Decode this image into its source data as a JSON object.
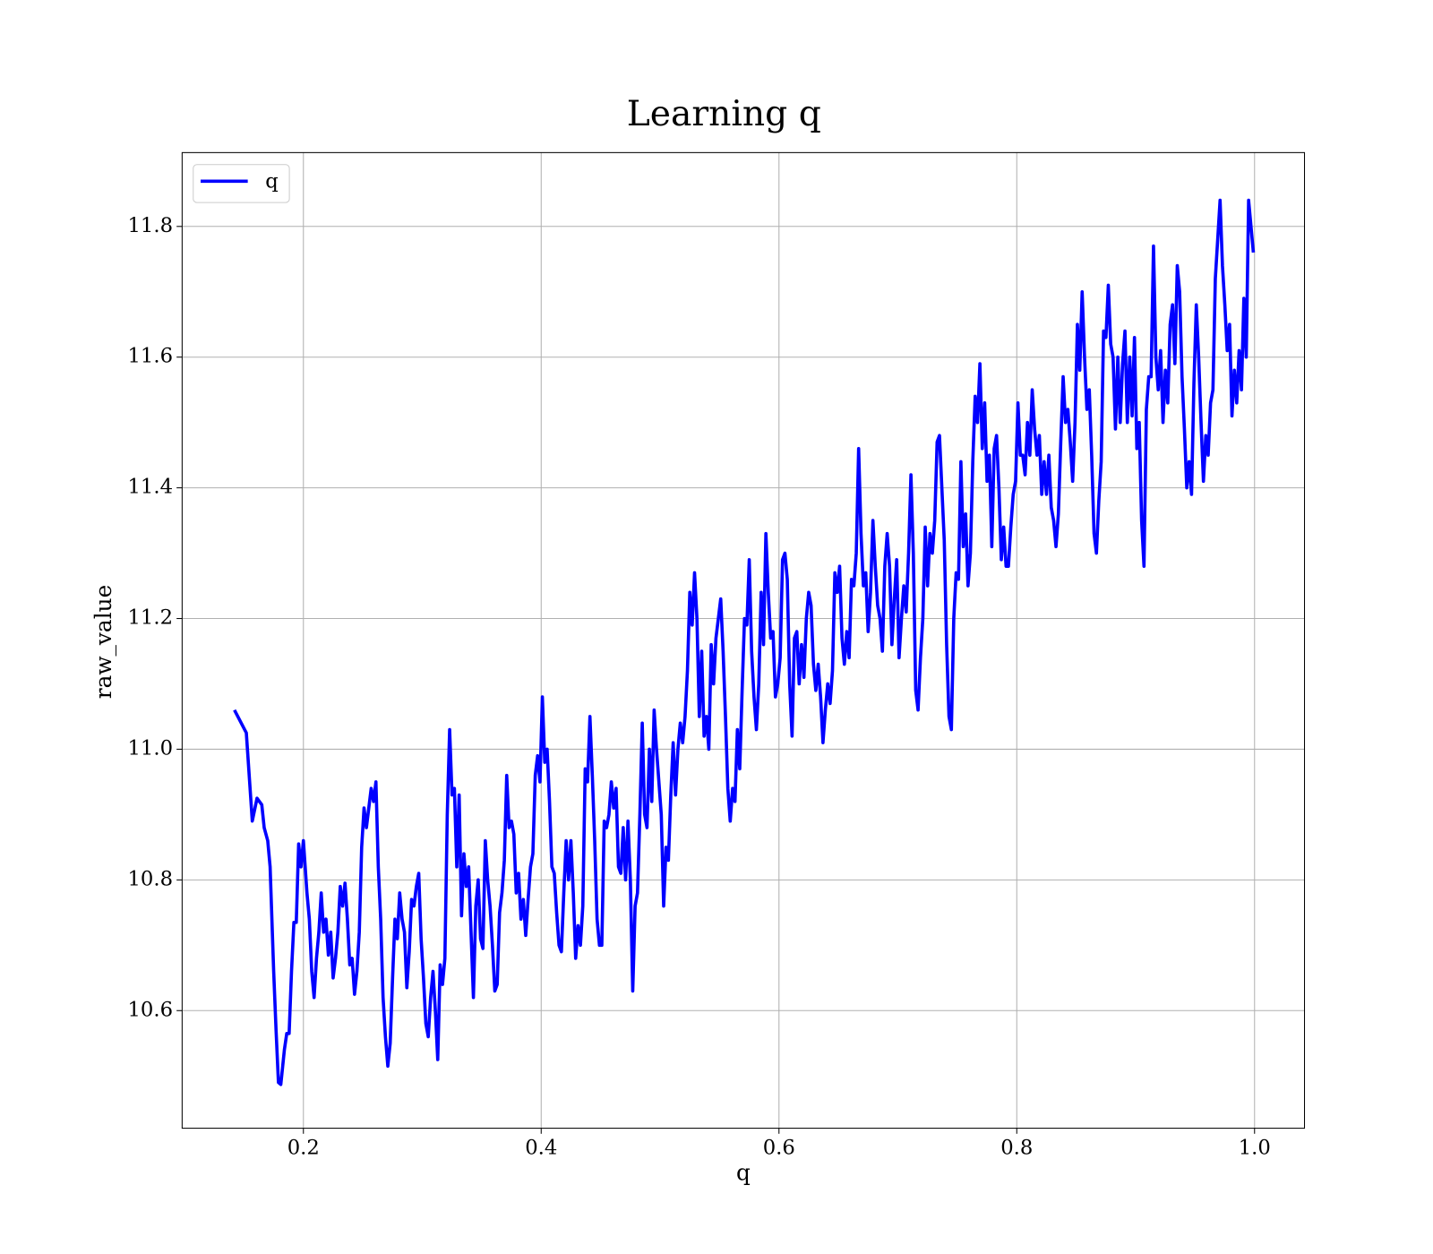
{
  "chart_data": {
    "type": "line",
    "title": "Learning q",
    "xlabel": "q",
    "ylabel": "raw_value",
    "xlim": [
      0.098,
      1.042
    ],
    "ylim": [
      10.42,
      11.913
    ],
    "xticks": [
      0.2,
      0.4,
      0.6,
      0.8,
      {
        "value": 1,
        "label": "1.0"
      }
    ],
    "yticks": [
      10.6,
      10.8,
      {
        "value": 11,
        "label": "11.0"
      },
      11.2,
      11.4,
      11.6,
      11.8
    ],
    "grid": true,
    "legend": "upper left",
    "x": [
      0.142,
      0.152,
      0.157,
      0.161,
      0.165,
      0.167,
      0.17,
      0.172,
      0.175,
      0.177,
      0.179,
      0.181,
      0.184,
      0.186,
      0.188,
      0.19,
      0.192,
      0.194,
      0.196,
      0.198,
      0.2,
      0.203,
      0.205,
      0.207,
      0.209,
      0.211,
      0.213,
      0.215,
      0.217,
      0.219,
      0.221,
      0.223,
      0.225,
      0.227,
      0.229,
      0.231,
      0.233,
      0.235,
      0.237,
      0.239,
      0.241,
      0.243,
      0.245,
      0.247,
      0.249,
      0.251,
      0.253,
      0.255,
      0.257,
      0.259,
      0.261,
      0.263,
      0.265,
      0.267,
      0.269,
      0.271,
      0.273,
      0.275,
      0.277,
      0.279,
      0.281,
      0.283,
      0.285,
      0.287,
      0.289,
      0.291,
      0.293,
      0.295,
      0.297,
      0.299,
      0.301,
      0.303,
      0.305,
      0.307,
      0.309,
      0.311,
      0.313,
      0.315,
      0.317,
      0.319,
      0.321,
      0.323,
      0.325,
      0.327,
      0.329,
      0.331,
      0.333,
      0.335,
      0.337,
      0.339,
      0.341,
      0.343,
      0.345,
      0.347,
      0.349,
      0.351,
      0.353,
      0.355,
      0.357,
      0.359,
      0.361,
      0.363,
      0.365,
      0.367,
      0.369,
      0.371,
      0.373,
      0.375,
      0.377,
      0.379,
      0.381,
      0.383,
      0.385,
      0.387,
      0.389,
      0.391,
      0.393,
      0.395,
      0.397,
      0.399,
      0.401,
      0.403,
      0.405,
      0.407,
      0.409,
      0.411,
      0.413,
      0.415,
      0.417,
      0.419,
      0.421,
      0.423,
      0.425,
      0.427,
      0.429,
      0.431,
      0.433,
      0.435,
      0.437,
      0.439,
      0.441,
      0.443,
      0.445,
      0.447,
      0.449,
      0.451,
      0.453,
      0.455,
      0.457,
      0.459,
      0.461,
      0.463,
      0.465,
      0.467,
      0.469,
      0.471,
      0.473,
      0.475,
      0.477,
      0.479,
      0.481,
      0.483,
      0.485,
      0.487,
      0.489,
      0.491,
      0.493,
      0.495,
      0.497,
      0.499,
      0.501,
      0.503,
      0.505,
      0.507,
      0.509,
      0.511,
      0.513,
      0.515,
      0.517,
      0.519,
      0.521,
      0.523,
      0.525,
      0.527,
      0.529,
      0.531,
      0.533,
      0.535,
      0.537,
      0.539,
      0.541,
      0.543,
      0.545,
      0.547,
      0.549,
      0.551,
      0.553,
      0.555,
      0.557,
      0.559,
      0.561,
      0.563,
      0.565,
      0.567,
      0.569,
      0.571,
      0.573,
      0.575,
      0.577,
      0.579,
      0.581,
      0.583,
      0.585,
      0.587,
      0.589,
      0.591,
      0.593,
      0.595,
      0.597,
      0.599,
      0.601,
      0.603,
      0.605,
      0.607,
      0.609,
      0.611,
      0.613,
      0.615,
      0.617,
      0.619,
      0.621,
      0.623,
      0.625,
      0.627,
      0.629,
      0.631,
      0.633,
      0.635,
      0.637,
      0.639,
      0.641,
      0.643,
      0.645,
      0.647,
      0.649,
      0.651,
      0.653,
      0.655,
      0.657,
      0.659,
      0.661,
      0.663,
      0.665,
      0.667,
      0.669,
      0.671,
      0.673,
      0.675,
      0.677,
      0.679,
      0.681,
      0.683,
      0.685,
      0.687,
      0.689,
      0.691,
      0.693,
      0.695,
      0.697,
      0.699,
      0.701,
      0.703,
      0.705,
      0.707,
      0.709,
      0.711,
      0.713,
      0.715,
      0.717,
      0.719,
      0.721,
      0.723,
      0.725,
      0.727,
      0.729,
      0.731,
      0.733,
      0.735,
      0.737,
      0.739,
      0.741,
      0.743,
      0.745,
      0.747,
      0.749,
      0.751,
      0.753,
      0.755,
      0.757,
      0.759,
      0.761,
      0.763,
      0.765,
      0.767,
      0.769,
      0.771,
      0.773,
      0.775,
      0.777,
      0.779,
      0.781,
      0.783,
      0.785,
      0.787,
      0.789,
      0.791,
      0.793,
      0.795,
      0.797,
      0.799,
      0.801,
      0.803,
      0.805,
      0.807,
      0.809,
      0.811,
      0.813,
      0.815,
      0.817,
      0.819,
      0.821,
      0.823,
      0.825,
      0.827,
      0.829,
      0.831,
      0.833,
      0.835,
      0.837,
      0.839,
      0.841,
      0.843,
      0.845,
      0.847,
      0.849,
      0.851,
      0.853,
      0.855,
      0.857,
      0.859,
      0.861,
      0.863,
      0.865,
      0.867,
      0.869,
      0.871,
      0.873,
      0.875,
      0.877,
      0.879,
      0.881,
      0.883,
      0.885,
      0.887,
      0.889,
      0.891,
      0.893,
      0.895,
      0.897,
      0.899,
      0.901,
      0.903,
      0.905,
      0.907,
      0.909,
      0.911,
      0.913,
      0.915,
      0.917,
      0.919,
      0.921,
      0.923,
      0.925,
      0.927,
      0.929,
      0.931,
      0.933,
      0.935,
      0.937,
      0.939,
      0.941,
      0.943,
      0.945,
      0.947,
      0.949,
      0.951,
      0.953,
      0.955,
      0.957,
      0.959,
      0.961,
      0.963,
      0.965,
      0.967,
      0.969,
      0.971,
      0.973,
      0.975,
      0.977,
      0.979,
      0.981,
      0.983,
      0.985,
      0.987,
      0.989,
      0.991,
      0.993,
      0.995,
      0.999
    ],
    "series": [
      {
        "name": "q",
        "color": "#0000ff",
        "values": [
          11.06,
          11.025,
          10.89,
          10.925,
          10.915,
          10.88,
          10.86,
          10.82,
          10.66,
          10.57,
          10.49,
          10.487,
          10.54,
          10.565,
          10.565,
          10.66,
          10.735,
          10.735,
          10.855,
          10.82,
          10.86,
          10.78,
          10.74,
          10.66,
          10.62,
          10.68,
          10.72,
          10.78,
          10.72,
          10.74,
          10.685,
          10.72,
          10.65,
          10.68,
          10.72,
          10.79,
          10.76,
          10.795,
          10.74,
          10.67,
          10.68,
          10.625,
          10.66,
          10.72,
          10.85,
          10.91,
          10.88,
          10.91,
          10.94,
          10.92,
          10.95,
          10.82,
          10.74,
          10.62,
          10.56,
          10.515,
          10.55,
          10.65,
          10.74,
          10.71,
          10.78,
          10.74,
          10.72,
          10.635,
          10.69,
          10.77,
          10.76,
          10.79,
          10.81,
          10.71,
          10.65,
          10.58,
          10.56,
          10.62,
          10.66,
          10.6,
          10.525,
          10.67,
          10.64,
          10.68,
          10.9,
          11.03,
          10.93,
          10.94,
          10.82,
          10.93,
          10.745,
          10.84,
          10.79,
          10.82,
          10.72,
          10.62,
          10.76,
          10.8,
          10.71,
          10.695,
          10.86,
          10.8,
          10.76,
          10.7,
          10.63,
          10.64,
          10.75,
          10.78,
          10.83,
          10.96,
          10.88,
          10.89,
          10.87,
          10.78,
          10.81,
          10.74,
          10.77,
          10.715,
          10.77,
          10.82,
          10.84,
          10.96,
          10.99,
          10.95,
          11.08,
          10.98,
          11.0,
          10.92,
          10.82,
          10.81,
          10.75,
          10.7,
          10.69,
          10.78,
          10.86,
          10.8,
          10.86,
          10.78,
          10.68,
          10.73,
          10.7,
          10.76,
          10.97,
          10.95,
          11.05,
          10.96,
          10.86,
          10.74,
          10.7,
          10.7,
          10.89,
          10.88,
          10.9,
          10.95,
          10.91,
          10.94,
          10.82,
          10.81,
          10.88,
          10.8,
          10.89,
          10.8,
          10.63,
          10.76,
          10.78,
          10.9,
          11.04,
          10.9,
          10.88,
          11.0,
          10.92,
          11.06,
          11.0,
          10.95,
          10.9,
          10.76,
          10.85,
          10.83,
          10.93,
          11.01,
          10.93,
          11.0,
          11.04,
          11.01,
          11.05,
          11.12,
          11.24,
          11.19,
          11.27,
          11.2,
          11.05,
          11.15,
          11.02,
          11.05,
          11.0,
          11.16,
          11.1,
          11.17,
          11.2,
          11.23,
          11.15,
          11.05,
          10.94,
          10.89,
          10.94,
          10.92,
          11.03,
          10.97,
          11.09,
          11.2,
          11.19,
          11.29,
          11.15,
          11.08,
          11.03,
          11.1,
          11.24,
          11.16,
          11.33,
          11.24,
          11.17,
          11.18,
          11.08,
          11.1,
          11.14,
          11.29,
          11.3,
          11.26,
          11.1,
          11.02,
          11.17,
          11.18,
          11.1,
          11.16,
          11.11,
          11.2,
          11.24,
          11.22,
          11.13,
          11.09,
          11.13,
          11.08,
          11.01,
          11.06,
          11.1,
          11.07,
          11.12,
          11.27,
          11.24,
          11.28,
          11.17,
          11.13,
          11.18,
          11.14,
          11.26,
          11.25,
          11.3,
          11.46,
          11.33,
          11.25,
          11.27,
          11.18,
          11.24,
          11.35,
          11.28,
          11.22,
          11.2,
          11.15,
          11.28,
          11.33,
          11.28,
          11.16,
          11.23,
          11.29,
          11.14,
          11.2,
          11.25,
          11.21,
          11.3,
          11.42,
          11.3,
          11.09,
          11.06,
          11.14,
          11.2,
          11.34,
          11.25,
          11.33,
          11.3,
          11.35,
          11.47,
          11.48,
          11.4,
          11.32,
          11.16,
          11.05,
          11.03,
          11.2,
          11.27,
          11.26,
          11.44,
          11.31,
          11.36,
          11.25,
          11.3,
          11.44,
          11.54,
          11.5,
          11.59,
          11.46,
          11.53,
          11.41,
          11.45,
          11.31,
          11.46,
          11.48,
          11.4,
          11.29,
          11.34,
          11.28,
          11.28,
          11.34,
          11.39,
          11.41,
          11.53,
          11.45,
          11.45,
          11.42,
          11.5,
          11.45,
          11.55,
          11.49,
          11.45,
          11.48,
          11.39,
          11.44,
          11.39,
          11.45,
          11.37,
          11.35,
          11.31,
          11.36,
          11.47,
          11.57,
          11.5,
          11.52,
          11.47,
          11.41,
          11.5,
          11.65,
          11.58,
          11.7,
          11.6,
          11.52,
          11.55,
          11.45,
          11.33,
          11.3,
          11.38,
          11.44,
          11.64,
          11.63,
          11.71,
          11.62,
          11.6,
          11.49,
          11.6,
          11.5,
          11.59,
          11.64,
          11.5,
          11.6,
          11.51,
          11.63,
          11.46,
          11.5,
          11.35,
          11.28,
          11.52,
          11.57,
          11.57,
          11.77,
          11.6,
          11.55,
          11.61,
          11.5,
          11.58,
          11.53,
          11.65,
          11.68,
          11.59,
          11.74,
          11.7,
          11.57,
          11.49,
          11.4,
          11.44,
          11.39,
          11.56,
          11.68,
          11.6,
          11.5,
          11.41,
          11.48,
          11.45,
          11.53,
          11.55,
          11.72,
          11.78,
          11.84,
          11.74,
          11.68,
          11.61,
          11.65,
          11.51,
          11.58,
          11.53,
          11.61,
          11.55,
          11.69,
          11.6,
          11.84,
          11.76
        ]
      }
    ]
  }
}
